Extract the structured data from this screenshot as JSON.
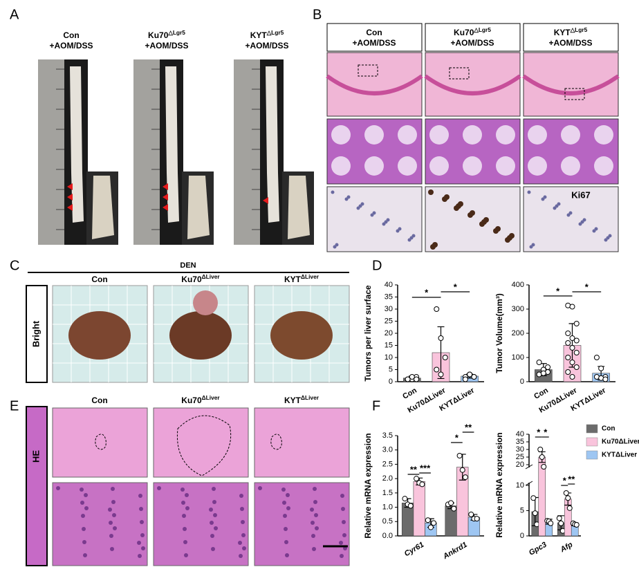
{
  "panel_labels": [
    "A",
    "B",
    "C",
    "D",
    "E",
    "F"
  ],
  "panel_a": {
    "groups": [
      {
        "line1": "Con",
        "line2": "+AOM/DSS"
      },
      {
        "line1": "Ku70",
        "sup": "△Lgr5",
        "line2": "+AOM/DSS"
      },
      {
        "line1": "KYT",
        "sup": "△Lgr5",
        "line2": "+AOM/DSS"
      }
    ]
  },
  "panel_b": {
    "headers": [
      {
        "line1": "Con",
        "line2": "+AOM/DSS"
      },
      {
        "line1": "Ku70",
        "sup": "△Lgr5",
        "line2": "+AOM/DSS"
      },
      {
        "line1": "KYT",
        "sup": "△Lgr5",
        "line2": "+AOM/DSS"
      }
    ],
    "stain": "Ki67"
  },
  "panel_c": {
    "treatment": "DEN",
    "row_label": "Bright",
    "columns": [
      {
        "line1": "Con"
      },
      {
        "line1": "Ku70",
        "sup": "ΔLiver"
      },
      {
        "line1": "KYT",
        "sup": "ΔLiver"
      }
    ]
  },
  "panel_e": {
    "row_label": "HE",
    "columns": [
      {
        "line1": "Con"
      },
      {
        "line1": "Ku70",
        "sup": "ΔLiver"
      },
      {
        "line1": "KYT",
        "sup": "ΔLiver"
      }
    ]
  },
  "chart_data": [
    {
      "type": "bar",
      "y_label": "Tumors per liver surface",
      "categories": [
        "Con",
        "Ku70ΔLiver",
        "KYTΔLiver"
      ],
      "values": [
        1.5,
        12,
        2.3
      ],
      "errors": [
        0.8,
        10.7,
        0.8
      ],
      "points": [
        [
          1,
          1,
          2,
          1,
          2,
          1
        ],
        [
          30,
          18,
          10,
          5,
          3
        ],
        [
          2,
          3,
          2,
          1,
          3,
          2
        ]
      ],
      "colors": [
        "#6b6b6b",
        "#f9c4dc",
        "#9ec6f2"
      ],
      "ylim": [
        0,
        40
      ],
      "yticks": [
        0,
        5,
        10,
        15,
        20,
        25,
        30,
        35,
        40
      ],
      "annotations": [
        "*",
        "*"
      ]
    },
    {
      "type": "bar",
      "y_label": "Tumor Volume(mm³)",
      "categories": [
        "Con",
        "Ku70ΔLiver",
        "KYTΔLiver"
      ],
      "values": [
        50,
        150,
        35
      ],
      "errors": [
        25,
        90,
        28
      ],
      "points": [
        [
          80,
          50,
          40,
          30,
          35,
          60
        ],
        [
          315,
          310,
          240,
          200,
          180,
          170,
          160,
          140,
          120,
          100,
          80,
          60,
          40,
          20
        ],
        [
          100,
          55,
          20,
          20,
          15,
          10
        ]
      ],
      "colors": [
        "#6b6b6b",
        "#f9c4dc",
        "#9ec6f2"
      ],
      "ylim": [
        0,
        400
      ],
      "yticks": [
        0,
        100,
        200,
        300,
        400
      ],
      "annotations": [
        "*",
        "*"
      ]
    },
    {
      "type": "grouped-bar",
      "y_label": "Relative mRNA expression",
      "categories": [
        "Cyr61",
        "Ankrd1"
      ],
      "series": [
        {
          "name": "Con",
          "color": "#6b6b6b",
          "values": [
            1.15,
            1.05
          ],
          "errors": [
            0.15,
            0.1
          ],
          "points": [
            [
              1.3,
              1.1,
              1.05
            ],
            [
              1.1,
              1.15,
              0.95
            ]
          ]
        },
        {
          "name": "Ku70ΔLiver",
          "color": "#f9c4dc",
          "values": [
            1.9,
            2.4
          ],
          "errors": [
            0.12,
            0.45
          ],
          "points": [
            [
              2.0,
              1.85,
              1.8
            ],
            [
              2.8,
              2.3,
              2.05
            ]
          ]
        },
        {
          "name": "KYTΔLiver",
          "color": "#9ec6f2",
          "values": [
            0.45,
            0.65
          ],
          "errors": [
            0.15,
            0.1
          ],
          "points": [
            [
              0.55,
              0.3,
              0.45
            ],
            [
              0.75,
              0.6,
              0.6
            ]
          ]
        }
      ],
      "ylim": [
        0,
        3.5
      ],
      "yticks": [
        {
          "value": 0,
          "label": "0.0"
        },
        0.5,
        {
          "value": 1,
          "label": "1.0"
        },
        1.5,
        {
          "value": 2,
          "label": "2.0"
        },
        2.5,
        {
          "value": 3,
          "label": "3.0"
        },
        3.5
      ],
      "annotations": [
        "**",
        "***",
        "*",
        "**"
      ]
    },
    {
      "type": "grouped-bar",
      "y_label": "Relative mRNA expression",
      "categories": [
        "Gpc3",
        "Afp"
      ],
      "series": [
        {
          "name": "Con",
          "color": "#6b6b6b",
          "values": [
            4.8,
            2.6
          ],
          "errors": [
            2.8,
            1.4
          ],
          "points": [
            [
              7.5,
              4.5,
              2.3
            ],
            [
              3.5,
              2.5,
              1.0
            ]
          ]
        },
        {
          "name": "Ku70ΔLiver",
          "color": "#f9c4dc",
          "values": [
            25,
            7.3
          ],
          "errors": [
            3.5,
            1.2
          ],
          "points": [
            [
              30,
              25,
              19
            ],
            [
              8.5,
              7.5,
              5.5
            ]
          ]
        },
        {
          "name": "KYTΔLiver",
          "color": "#9ec6f2",
          "values": [
            2.8,
            2.3
          ],
          "errors": [
            0.5,
            0.3
          ],
          "points": [
            [
              3.0,
              2.9,
              2.5
            ],
            [
              2.5,
              2.3,
              2.2
            ]
          ]
        }
      ],
      "ylim": [
        0,
        40
      ],
      "axis_break": [
        10,
        20
      ],
      "yticks": [
        0,
        5,
        10,
        20,
        25,
        30,
        35,
        40
      ],
      "annotations": [
        "*",
        "*",
        "*",
        "**"
      ]
    }
  ]
}
